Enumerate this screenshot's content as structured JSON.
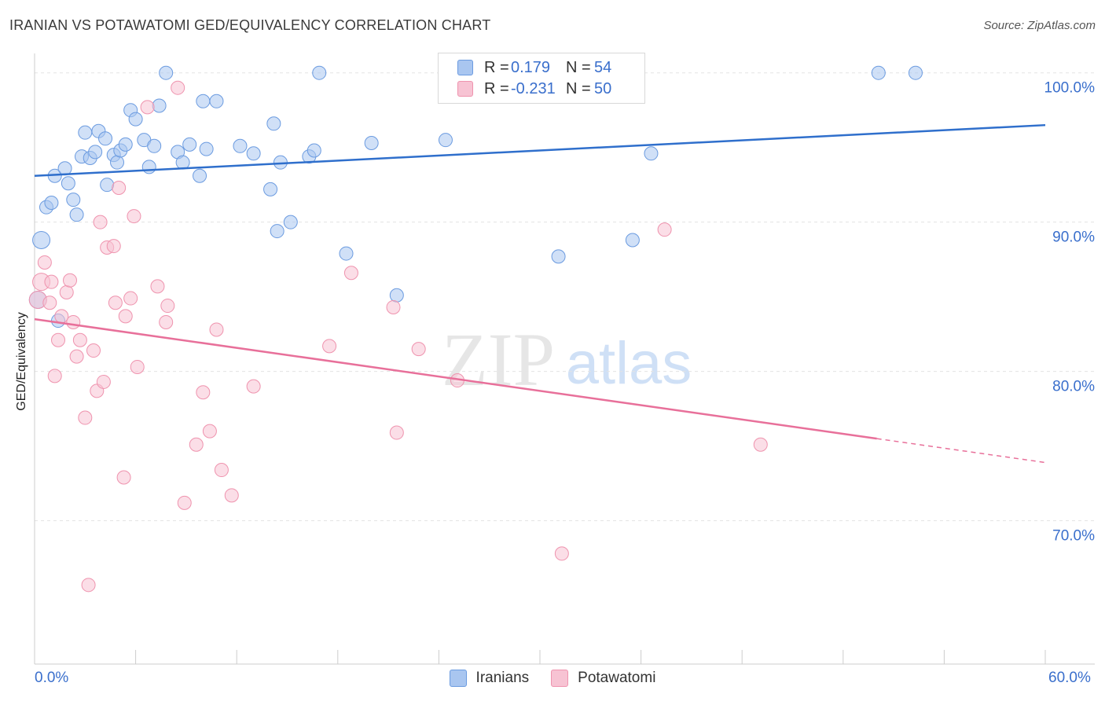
{
  "title": "IRANIAN VS POTAWATOMI GED/EQUIVALENCY CORRELATION CHART",
  "source": "Source: ZipAtlas.com",
  "watermark": {
    "zip": "ZIP",
    "atlas": "atlas"
  },
  "legend_top": [
    {
      "r_label": "R =",
      "r_value": "0.179",
      "n_label": "N =",
      "n_value": "54",
      "color": "#a9c6f0",
      "border": "#6b9be0"
    },
    {
      "r_label": "R =",
      "r_value": "-0.231",
      "n_label": "N =",
      "n_value": "50",
      "color": "#f7c3d3",
      "border": "#ef93ae"
    }
  ],
  "x_tick_left": "0.0%",
  "x_tick_right": "60.0%",
  "chart_data": {
    "type": "scatter",
    "title": "IRANIAN VS POTAWATOMI GED/EQUIVALENCY CORRELATION CHART",
    "ylabel": "GED/Equivalency",
    "xlabel": "",
    "xlim": [
      0,
      60
    ],
    "ylim": [
      60.4,
      101.3
    ],
    "y_ticks": [
      {
        "value": 100,
        "label": "100.0%"
      },
      {
        "value": 90,
        "label": "90.0%"
      },
      {
        "value": 80,
        "label": "80.0%"
      },
      {
        "value": 70,
        "label": "70.0%"
      }
    ],
    "grid": true,
    "legend": "bottom-center",
    "series": [
      {
        "name": "Iranians",
        "color": "#a9c6f0",
        "stroke": "#6b9be0",
        "line_color": "#2f6fcc",
        "trend": {
          "x": [
            0,
            60
          ],
          "y": [
            93.1,
            96.5
          ],
          "dashed_from": null
        },
        "points": [
          [
            0.2,
            84.8
          ],
          [
            0.4,
            88.8
          ],
          [
            0.7,
            91.0
          ],
          [
            1.0,
            91.3
          ],
          [
            1.2,
            93.1
          ],
          [
            1.8,
            93.6
          ],
          [
            2.0,
            92.6
          ],
          [
            2.3,
            91.5
          ],
          [
            2.5,
            90.5
          ],
          [
            2.8,
            94.4
          ],
          [
            3.0,
            96.0
          ],
          [
            3.3,
            94.3
          ],
          [
            3.6,
            94.7
          ],
          [
            3.8,
            96.1
          ],
          [
            4.2,
            95.6
          ],
          [
            4.3,
            92.5
          ],
          [
            4.7,
            94.5
          ],
          [
            4.9,
            94.0
          ],
          [
            5.1,
            94.8
          ],
          [
            5.4,
            95.2
          ],
          [
            5.7,
            97.5
          ],
          [
            6.0,
            96.9
          ],
          [
            6.5,
            95.5
          ],
          [
            6.8,
            93.7
          ],
          [
            7.1,
            95.1
          ],
          [
            7.4,
            97.8
          ],
          [
            7.8,
            100.0
          ],
          [
            8.5,
            94.7
          ],
          [
            8.8,
            94.0
          ],
          [
            9.2,
            95.2
          ],
          [
            9.8,
            93.1
          ],
          [
            10.0,
            98.1
          ],
          [
            10.2,
            94.9
          ],
          [
            10.8,
            98.1
          ],
          [
            12.2,
            95.1
          ],
          [
            13.0,
            94.6
          ],
          [
            14.0,
            92.2
          ],
          [
            14.2,
            96.6
          ],
          [
            14.4,
            89.4
          ],
          [
            14.6,
            94.0
          ],
          [
            15.2,
            90.0
          ],
          [
            16.3,
            94.4
          ],
          [
            16.6,
            94.8
          ],
          [
            16.9,
            100.0
          ],
          [
            18.5,
            87.9
          ],
          [
            20.0,
            95.3
          ],
          [
            21.5,
            85.1
          ],
          [
            24.4,
            95.5
          ],
          [
            31.1,
            87.7
          ],
          [
            35.5,
            88.8
          ],
          [
            36.6,
            94.6
          ],
          [
            50.1,
            100.0
          ],
          [
            52.3,
            100.0
          ],
          [
            1.4,
            83.4
          ]
        ]
      },
      {
        "name": "Potawatomi",
        "color": "#f7c3d3",
        "stroke": "#ef93ae",
        "line_color": "#e8709a",
        "trend": {
          "x": [
            0,
            60
          ],
          "y": [
            83.5,
            73.9
          ],
          "dashed_from": 50
        },
        "points": [
          [
            0.2,
            84.8
          ],
          [
            0.4,
            86.0
          ],
          [
            0.6,
            87.3
          ],
          [
            0.9,
            84.6
          ],
          [
            1.0,
            86.0
          ],
          [
            1.2,
            79.7
          ],
          [
            1.4,
            82.1
          ],
          [
            1.6,
            83.7
          ],
          [
            1.9,
            85.3
          ],
          [
            2.1,
            86.1
          ],
          [
            2.3,
            83.3
          ],
          [
            2.5,
            81.0
          ],
          [
            2.7,
            82.1
          ],
          [
            3.0,
            76.9
          ],
          [
            3.5,
            81.4
          ],
          [
            3.7,
            78.7
          ],
          [
            3.9,
            90.0
          ],
          [
            4.1,
            79.3
          ],
          [
            4.3,
            88.3
          ],
          [
            4.7,
            88.4
          ],
          [
            4.8,
            84.6
          ],
          [
            5.0,
            92.3
          ],
          [
            5.3,
            72.9
          ],
          [
            5.4,
            83.7
          ],
          [
            5.7,
            84.9
          ],
          [
            5.9,
            90.4
          ],
          [
            6.1,
            80.3
          ],
          [
            6.7,
            97.7
          ],
          [
            7.3,
            85.7
          ],
          [
            7.8,
            83.3
          ],
          [
            7.9,
            84.4
          ],
          [
            8.5,
            99.0
          ],
          [
            8.9,
            71.2
          ],
          [
            9.6,
            75.1
          ],
          [
            10.0,
            78.6
          ],
          [
            10.4,
            76.0
          ],
          [
            10.8,
            82.8
          ],
          [
            11.1,
            73.4
          ],
          [
            11.7,
            71.7
          ],
          [
            13.0,
            79.0
          ],
          [
            17.5,
            81.7
          ],
          [
            18.8,
            86.6
          ],
          [
            21.3,
            84.3
          ],
          [
            21.5,
            75.9
          ],
          [
            22.8,
            81.5
          ],
          [
            25.1,
            79.4
          ],
          [
            31.3,
            67.8
          ],
          [
            37.4,
            89.5
          ],
          [
            43.1,
            75.1
          ],
          [
            3.2,
            65.7
          ]
        ]
      }
    ]
  }
}
